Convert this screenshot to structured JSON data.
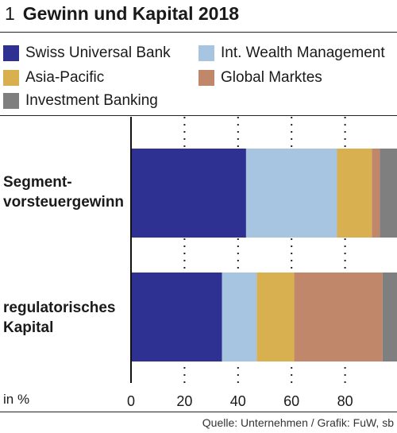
{
  "header": {
    "number": "1",
    "title": "Gewinn und  Kapital 2018"
  },
  "legend": {
    "items": [
      {
        "label": "Swiss Universal Bank",
        "color": "#2e3192"
      },
      {
        "label": "Int. Wealth Management",
        "color": "#a7c4e0"
      },
      {
        "label": "Asia-Pacific",
        "color": "#d9b04f"
      },
      {
        "label": "Global Marktes",
        "color": "#c0876a"
      },
      {
        "label": "Investment Banking",
        "color": "#7f7f7f"
      }
    ]
  },
  "chart_data": {
    "type": "bar",
    "orientation": "horizontal",
    "stacked": true,
    "categories": [
      "Segment-\nvorsteuergewinn",
      "regulatorisches\nKapital"
    ],
    "series": [
      {
        "name": "Swiss Universal Bank",
        "color": "#2e3192",
        "values": [
          43,
          34
        ]
      },
      {
        "name": "Int. Wealth Management",
        "color": "#a7c4e0",
        "values": [
          34,
          13
        ]
      },
      {
        "name": "Asia-Pacific",
        "color": "#d9b04f",
        "values": [
          13,
          14
        ]
      },
      {
        "name": "Global Marktes",
        "color": "#c0876a",
        "values": [
          3,
          33
        ]
      },
      {
        "name": "Investment Banking",
        "color": "#7f7f7f",
        "values": [
          7,
          6
        ]
      }
    ],
    "xlim": [
      0,
      100
    ],
    "xticks": [
      0,
      20,
      40,
      60,
      80
    ],
    "xlabel": "in %",
    "grid": "dotted vertical",
    "legend_position": "top"
  },
  "footer": {
    "source": "Quelle: Unternehmen / Grafik: FuW, sb"
  }
}
